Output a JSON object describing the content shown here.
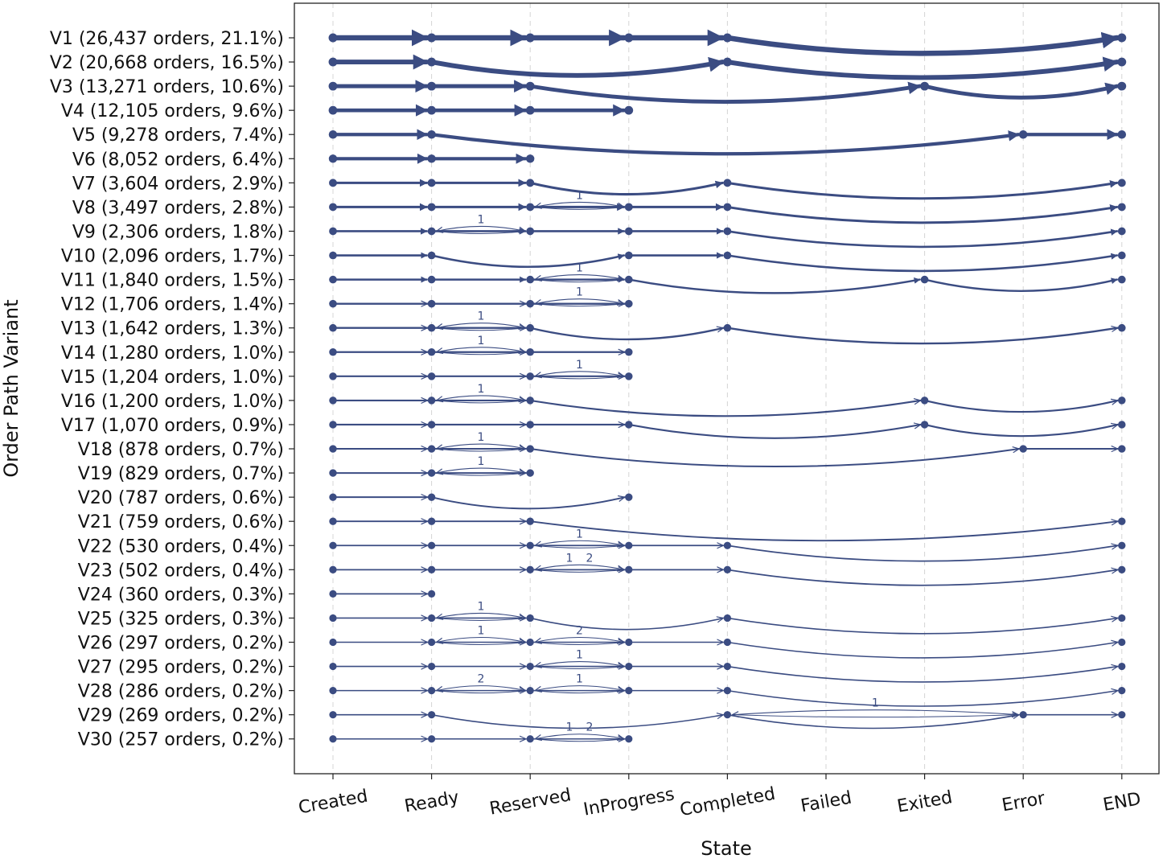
{
  "chart_data": {
    "type": "line",
    "title": "",
    "xlabel": "State",
    "ylabel": "Order Path Variant",
    "color": "#3b4c82",
    "grid": "vertical-dashed",
    "states": [
      "Created",
      "Ready",
      "Reserved",
      "InProgress",
      "Completed",
      "Failed",
      "Exited",
      "Error",
      "END"
    ],
    "variants": [
      {
        "label": "V1 (26,437 orders, 21.1%)",
        "orders": 26437,
        "percent": 21.1,
        "path": [
          "Created",
          "Ready",
          "Reserved",
          "InProgress",
          "Completed",
          "END"
        ],
        "loops": []
      },
      {
        "label": "V2 (20,668 orders, 16.5%)",
        "orders": 20668,
        "percent": 16.5,
        "path": [
          "Created",
          "Ready",
          "Completed",
          "END"
        ],
        "loops": []
      },
      {
        "label": "V3 (13,271 orders, 10.6%)",
        "orders": 13271,
        "percent": 10.6,
        "path": [
          "Created",
          "Ready",
          "Reserved",
          "Exited",
          "END"
        ],
        "loops": []
      },
      {
        "label": "V4 (12,105 orders, 9.6%)",
        "orders": 12105,
        "percent": 9.6,
        "path": [
          "Created",
          "Ready",
          "Reserved",
          "InProgress"
        ],
        "loops": []
      },
      {
        "label": "V5 (9,278 orders, 7.4%)",
        "orders": 9278,
        "percent": 7.4,
        "path": [
          "Created",
          "Ready",
          "Error",
          "END"
        ],
        "loops": []
      },
      {
        "label": "V6 (8,052 orders, 6.4%)",
        "orders": 8052,
        "percent": 6.4,
        "path": [
          "Created",
          "Ready",
          "Reserved"
        ],
        "loops": []
      },
      {
        "label": "V7 (3,604 orders, 2.9%)",
        "orders": 3604,
        "percent": 2.9,
        "path": [
          "Created",
          "Ready",
          "Reserved",
          "Completed",
          "END"
        ],
        "loops": []
      },
      {
        "label": "V8 (3,497 orders, 2.8%)",
        "orders": 3497,
        "percent": 2.8,
        "path": [
          "Created",
          "Ready",
          "Reserved",
          "InProgress",
          "Completed",
          "END"
        ],
        "loops": [
          {
            "from": "Reserved",
            "to": "InProgress",
            "labels": [
              "1"
            ]
          }
        ]
      },
      {
        "label": "V9 (2,306 orders, 1.8%)",
        "orders": 2306,
        "percent": 1.8,
        "path": [
          "Created",
          "Ready",
          "Reserved",
          "InProgress",
          "Completed",
          "END"
        ],
        "loops": [
          {
            "from": "Ready",
            "to": "Reserved",
            "labels": [
              "1"
            ]
          }
        ]
      },
      {
        "label": "V10 (2,096 orders, 1.7%)",
        "orders": 2096,
        "percent": 1.7,
        "path": [
          "Created",
          "Ready",
          "InProgress",
          "Completed",
          "END"
        ],
        "loops": []
      },
      {
        "label": "V11 (1,840 orders, 1.5%)",
        "orders": 1840,
        "percent": 1.5,
        "path": [
          "Created",
          "Ready",
          "Reserved",
          "InProgress",
          "Exited",
          "END"
        ],
        "loops": [
          {
            "from": "Reserved",
            "to": "InProgress",
            "labels": [
              "1"
            ]
          }
        ]
      },
      {
        "label": "V12 (1,706 orders, 1.4%)",
        "orders": 1706,
        "percent": 1.4,
        "path": [
          "Created",
          "Ready",
          "Reserved",
          "InProgress"
        ],
        "loops": [
          {
            "from": "Reserved",
            "to": "InProgress",
            "labels": [
              "1"
            ]
          }
        ]
      },
      {
        "label": "V13 (1,642 orders, 1.3%)",
        "orders": 1642,
        "percent": 1.3,
        "path": [
          "Created",
          "Ready",
          "Reserved",
          "Completed",
          "END"
        ],
        "loops": [
          {
            "from": "Ready",
            "to": "Reserved",
            "labels": [
              "1"
            ]
          }
        ]
      },
      {
        "label": "V14 (1,280 orders, 1.0%)",
        "orders": 1280,
        "percent": 1.0,
        "path": [
          "Created",
          "Ready",
          "Reserved",
          "InProgress"
        ],
        "loops": [
          {
            "from": "Ready",
            "to": "Reserved",
            "labels": [
              "1"
            ]
          }
        ]
      },
      {
        "label": "V15 (1,204 orders, 1.0%)",
        "orders": 1204,
        "percent": 1.0,
        "path": [
          "Created",
          "Ready",
          "Reserved",
          "InProgress"
        ],
        "loops": [
          {
            "from": "Reserved",
            "to": "InProgress",
            "labels": [
              "1"
            ]
          }
        ]
      },
      {
        "label": "V16 (1,200 orders, 1.0%)",
        "orders": 1200,
        "percent": 1.0,
        "path": [
          "Created",
          "Ready",
          "Reserved",
          "Exited",
          "END"
        ],
        "loops": [
          {
            "from": "Ready",
            "to": "Reserved",
            "labels": [
              "1"
            ]
          }
        ]
      },
      {
        "label": "V17 (1,070 orders, 0.9%)",
        "orders": 1070,
        "percent": 0.9,
        "path": [
          "Created",
          "Ready",
          "Reserved",
          "InProgress",
          "Exited",
          "END"
        ],
        "loops": []
      },
      {
        "label": "V18 (878 orders, 0.7%)",
        "orders": 878,
        "percent": 0.7,
        "path": [
          "Created",
          "Ready",
          "Reserved",
          "Error",
          "END"
        ],
        "loops": [
          {
            "from": "Ready",
            "to": "Reserved",
            "labels": [
              "1"
            ]
          }
        ]
      },
      {
        "label": "V19 (829 orders, 0.7%)",
        "orders": 829,
        "percent": 0.7,
        "path": [
          "Created",
          "Ready",
          "Reserved"
        ],
        "loops": [
          {
            "from": "Ready",
            "to": "Reserved",
            "labels": [
              "1"
            ]
          }
        ]
      },
      {
        "label": "V20 (787 orders, 0.6%)",
        "orders": 787,
        "percent": 0.6,
        "path": [
          "Created",
          "Ready",
          "InProgress"
        ],
        "loops": []
      },
      {
        "label": "V21 (759 orders, 0.6%)",
        "orders": 759,
        "percent": 0.6,
        "path": [
          "Created",
          "Ready",
          "Reserved",
          "END"
        ],
        "loops": []
      },
      {
        "label": "V22 (530 orders, 0.4%)",
        "orders": 530,
        "percent": 0.4,
        "path": [
          "Created",
          "Ready",
          "Reserved",
          "InProgress",
          "Completed",
          "END"
        ],
        "loops": [
          {
            "from": "Reserved",
            "to": "InProgress",
            "labels": [
              "1"
            ]
          }
        ]
      },
      {
        "label": "V23 (502 orders, 0.4%)",
        "orders": 502,
        "percent": 0.4,
        "path": [
          "Created",
          "Ready",
          "Reserved",
          "InProgress",
          "Completed",
          "END"
        ],
        "loops": [
          {
            "from": "Reserved",
            "to": "InProgress",
            "labels": [
              "1",
              "2"
            ]
          }
        ]
      },
      {
        "label": "V24 (360 orders, 0.3%)",
        "orders": 360,
        "percent": 0.3,
        "path": [
          "Created",
          "Ready"
        ],
        "loops": []
      },
      {
        "label": "V25 (325 orders, 0.3%)",
        "orders": 325,
        "percent": 0.3,
        "path": [
          "Created",
          "Ready",
          "Reserved",
          "Completed",
          "END"
        ],
        "loops": [
          {
            "from": "Ready",
            "to": "Reserved",
            "labels": [
              "1"
            ]
          }
        ]
      },
      {
        "label": "V26 (297 orders, 0.2%)",
        "orders": 297,
        "percent": 0.2,
        "path": [
          "Created",
          "Ready",
          "Reserved",
          "InProgress",
          "Completed",
          "END"
        ],
        "loops": [
          {
            "from": "Ready",
            "to": "Reserved",
            "labels": [
              "1"
            ]
          },
          {
            "from": "Reserved",
            "to": "InProgress",
            "labels": [
              "2"
            ]
          }
        ]
      },
      {
        "label": "V27 (295 orders, 0.2%)",
        "orders": 295,
        "percent": 0.2,
        "path": [
          "Created",
          "Ready",
          "Reserved",
          "InProgress",
          "Completed",
          "END"
        ],
        "loops": [
          {
            "from": "Reserved",
            "to": "InProgress",
            "labels": [
              "1"
            ]
          }
        ]
      },
      {
        "label": "V28 (286 orders, 0.2%)",
        "orders": 286,
        "percent": 0.2,
        "path": [
          "Created",
          "Ready",
          "Reserved",
          "InProgress",
          "Completed",
          "END"
        ],
        "loops": [
          {
            "from": "Ready",
            "to": "Reserved",
            "labels": [
              "2"
            ]
          },
          {
            "from": "Reserved",
            "to": "InProgress",
            "labels": [
              "1"
            ]
          }
        ]
      },
      {
        "label": "V29 (269 orders, 0.2%)",
        "orders": 269,
        "percent": 0.2,
        "path": [
          "Created",
          "Ready",
          "Completed",
          "Error",
          "END"
        ],
        "loops": [
          {
            "from": "Completed",
            "to": "Error",
            "labels": [
              "1"
            ]
          }
        ]
      },
      {
        "label": "V30 (257 orders, 0.2%)",
        "orders": 257,
        "percent": 0.2,
        "path": [
          "Created",
          "Ready",
          "Reserved",
          "InProgress"
        ],
        "loops": [
          {
            "from": "Reserved",
            "to": "InProgress",
            "labels": [
              "1",
              "2"
            ]
          }
        ]
      }
    ]
  }
}
